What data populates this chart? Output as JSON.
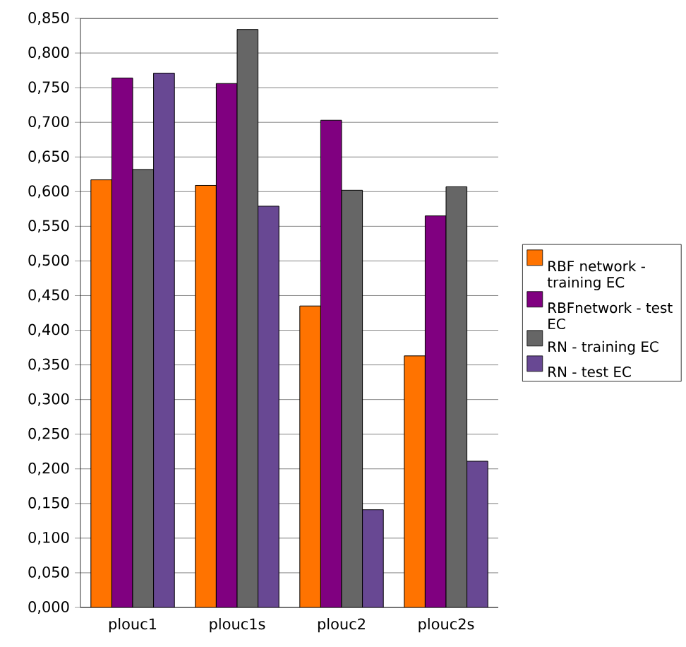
{
  "chart_data": {
    "type": "bar",
    "categories": [
      "plouc1",
      "plouc1s",
      "plouc2",
      "plouc2s"
    ],
    "series": [
      {
        "name": "RBF network - training EC",
        "color": "#ff7300",
        "values": [
          0.617,
          0.609,
          0.435,
          0.363
        ]
      },
      {
        "name": "RBFnetwork - test EC",
        "color": "#800080",
        "values": [
          0.764,
          0.756,
          0.703,
          0.565
        ]
      },
      {
        "name": "RN  - training EC",
        "color": "#666666",
        "values": [
          0.632,
          0.834,
          0.602,
          0.607
        ]
      },
      {
        "name": "RN - test EC",
        "color": "#684893",
        "values": [
          0.771,
          0.579,
          0.141,
          0.211
        ]
      }
    ],
    "ylim": [
      0,
      0.85
    ],
    "yticks": [
      {
        "value": 0,
        "label": "0,000"
      },
      {
        "value": 0.05,
        "label": "0,050"
      },
      {
        "value": 0.1,
        "label": "0,100"
      },
      {
        "value": 0.15,
        "label": "0,150"
      },
      {
        "value": 0.2,
        "label": "0,200"
      },
      {
        "value": 0.25,
        "label": "0,250"
      },
      {
        "value": 0.3,
        "label": "0,300"
      },
      {
        "value": 0.35,
        "label": "0,350"
      },
      {
        "value": 0.4,
        "label": "0,400"
      },
      {
        "value": 0.45,
        "label": "0,450"
      },
      {
        "value": 0.5,
        "label": "0,500"
      },
      {
        "value": 0.55,
        "label": "0,550"
      },
      {
        "value": 0.6,
        "label": "0,600"
      },
      {
        "value": 0.65,
        "label": "0,650"
      },
      {
        "value": 0.7,
        "label": "0,700"
      },
      {
        "value": 0.75,
        "label": "0,750"
      },
      {
        "value": 0.8,
        "label": "0,800"
      },
      {
        "value": 0.85,
        "label": "0,850"
      }
    ],
    "grid": "y",
    "legend": "right"
  }
}
